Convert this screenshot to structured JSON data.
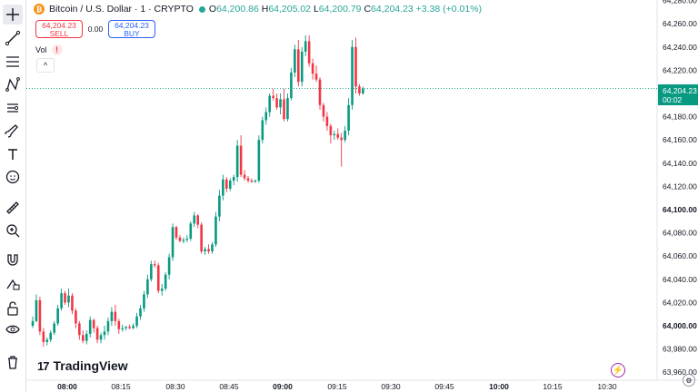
{
  "header": {
    "symbol_title": "Bitcoin / U.S. Dollar · 1 · CRYPTO",
    "coin_glyph": "₿",
    "ohlc": {
      "o_label": "O",
      "o": "64,200.86",
      "h_label": "H",
      "h": "64,205.02",
      "l_label": "L",
      "l": "64,200.79",
      "c_label": "C",
      "c": "64,204.23",
      "change": "+3.38 (+0.01%)"
    }
  },
  "trade": {
    "sell_price": "64,204.23",
    "sell_label": "SELL",
    "spread": "0.00",
    "buy_price": "64,204.23",
    "buy_label": "BUY"
  },
  "volume": {
    "label": "Vol",
    "warn": "!"
  },
  "collapse_glyph": "^",
  "logo": {
    "mark": "17",
    "name": "TradingView"
  },
  "price_label": {
    "price": "64,204.23",
    "countdown": "00:02"
  },
  "colors": {
    "up": "#089981",
    "down": "#f23645",
    "text": "#131722",
    "grid": "#f0f3fa"
  },
  "toolbar": [
    "crosshair-icon",
    "trend-line-icon",
    "fib-icon",
    "pattern-icon",
    "forecast-icon",
    "brush-icon",
    "text-icon",
    "emoji-icon",
    "ruler-icon",
    "zoom-icon",
    "magnet-icon",
    "lock-draw-icon",
    "unlock-icon",
    "eye-icon",
    "trash-icon"
  ],
  "chart_data": {
    "type": "candlestick",
    "y_ticks": [
      "64,260.00",
      "64,240.00",
      "64,220.00",
      "64,200.00",
      "64,180.00",
      "64,160.00",
      "64,140.00",
      "64,120.00",
      "64,100.00",
      "64,080.00",
      "64,060.00",
      "64,040.00",
      "64,020.00",
      "64,000.00",
      "63,980.00",
      "63,960.00"
    ],
    "y_tick_values": [
      64260,
      64240,
      64220,
      64200,
      64180,
      64160,
      64140,
      64120,
      64100,
      64080,
      64060,
      64040,
      64020,
      64000,
      63980,
      63960
    ],
    "top_tick_partial": "64,280.00",
    "x_ticks": [
      "08:00",
      "08:15",
      "08:30",
      "08:45",
      "09:00",
      "09:15",
      "09:30",
      "09:45",
      "10:00",
      "10:15",
      "10:30"
    ],
    "x_tick_bold": [
      true,
      false,
      false,
      false,
      true,
      false,
      false,
      false,
      true,
      false,
      false
    ],
    "last_price": 64204.23,
    "candles": [
      [
        64000,
        64008,
        63998,
        64004
      ],
      [
        64004,
        64027,
        64003,
        64022
      ],
      [
        64022,
        64025,
        63992,
        63995
      ],
      [
        63995,
        63998,
        63982,
        63986
      ],
      [
        63986,
        63990,
        63983,
        63988
      ],
      [
        63988,
        63996,
        63986,
        63994
      ],
      [
        63994,
        64004,
        63992,
        64002
      ],
      [
        64002,
        64018,
        64000,
        64015
      ],
      [
        64015,
        64032,
        64013,
        64028
      ],
      [
        64028,
        64030,
        64018,
        64020
      ],
      [
        64020,
        64032,
        64016,
        64026
      ],
      [
        64026,
        64028,
        64010,
        64013
      ],
      [
        64013,
        64015,
        63998,
        64002
      ],
      [
        64002,
        64004,
        63988,
        63992
      ],
      [
        63992,
        63996,
        63985,
        63987
      ],
      [
        63987,
        63996,
        63984,
        63993
      ],
      [
        63993,
        64008,
        63990,
        64005
      ],
      [
        64005,
        64006,
        63994,
        63998
      ],
      [
        63998,
        64000,
        63985,
        63988
      ],
      [
        63988,
        63994,
        63985,
        63992
      ],
      [
        63992,
        64000,
        63988,
        63995
      ],
      [
        63995,
        64007,
        63992,
        64004
      ],
      [
        64004,
        64016,
        64000,
        64012
      ],
      [
        64012,
        64018,
        64000,
        64004
      ],
      [
        64004,
        64006,
        63993,
        63997
      ],
      [
        63997,
        64001,
        63995,
        63998
      ],
      [
        63998,
        64000,
        63996,
        63999
      ],
      [
        63999,
        64001,
        63997,
        63998
      ],
      [
        63998,
        64002,
        63997,
        64000
      ],
      [
        64000,
        64011,
        63998,
        64008
      ],
      [
        64008,
        64018,
        64005,
        64015
      ],
      [
        64015,
        64030,
        64012,
        64027
      ],
      [
        64027,
        64044,
        64024,
        64040
      ],
      [
        64040,
        64056,
        64038,
        64053
      ],
      [
        64053,
        64056,
        64050,
        64052
      ],
      [
        64052,
        64054,
        64028,
        64030
      ],
      [
        64030,
        64036,
        64026,
        64032
      ],
      [
        64032,
        64046,
        64030,
        64044
      ],
      [
        64044,
        64062,
        64040,
        64059
      ],
      [
        64059,
        64088,
        64056,
        64085
      ],
      [
        64085,
        64086,
        64074,
        64076
      ],
      [
        64076,
        64078,
        64072,
        64073
      ],
      [
        64073,
        64076,
        64071,
        64074
      ],
      [
        64074,
        64078,
        64072,
        64075
      ],
      [
        64075,
        64090,
        64073,
        64088
      ],
      [
        64088,
        64098,
        64085,
        64095
      ],
      [
        64095,
        64096,
        64084,
        64087
      ],
      [
        64087,
        64089,
        64062,
        64064
      ],
      [
        64064,
        64068,
        64061,
        64066
      ],
      [
        64066,
        64070,
        64062,
        64064
      ],
      [
        64064,
        64072,
        64062,
        64070
      ],
      [
        64070,
        64098,
        64068,
        64094
      ],
      [
        64094,
        64117,
        64090,
        64112
      ],
      [
        64112,
        64130,
        64108,
        64126
      ],
      [
        64126,
        64128,
        64115,
        64118
      ],
      [
        64118,
        64127,
        64116,
        64125
      ],
      [
        64125,
        64130,
        64121,
        64128
      ],
      [
        64128,
        64160,
        64124,
        64155
      ],
      [
        64155,
        64164,
        64128,
        64130
      ],
      [
        64130,
        64134,
        64125,
        64127
      ],
      [
        64127,
        64129,
        64123,
        64125
      ],
      [
        64125,
        64127,
        64123,
        64124
      ],
      [
        64124,
        64126,
        64123,
        64125
      ],
      [
        64125,
        64164,
        64123,
        64160
      ],
      [
        64160,
        64180,
        64157,
        64177
      ],
      [
        64177,
        64188,
        64173,
        64184
      ],
      [
        64184,
        64200,
        64180,
        64198
      ],
      [
        64198,
        64204,
        64194,
        64196
      ],
      [
        64196,
        64200,
        64186,
        64188
      ],
      [
        64188,
        64200,
        64182,
        64195
      ],
      [
        64195,
        64204,
        64176,
        64178
      ],
      [
        64178,
        64200,
        64176,
        64196
      ],
      [
        64196,
        64222,
        64194,
        64218
      ],
      [
        64218,
        64242,
        64214,
        64238
      ],
      [
        64238,
        64246,
        64206,
        64210
      ],
      [
        64210,
        64240,
        64206,
        64236
      ],
      [
        64236,
        64250,
        64232,
        64245
      ],
      [
        64245,
        64250,
        64223,
        64226
      ],
      [
        64226,
        64230,
        64212,
        64217
      ],
      [
        64217,
        64224,
        64210,
        64212
      ],
      [
        64212,
        64214,
        64186,
        64190
      ],
      [
        64190,
        64192,
        64176,
        64180
      ],
      [
        64180,
        64184,
        64168,
        64172
      ],
      [
        64172,
        64174,
        64157,
        64164
      ],
      [
        64164,
        64168,
        64160,
        64165
      ],
      [
        64165,
        64170,
        64160,
        64162
      ],
      [
        64162,
        64166,
        64137,
        64160
      ],
      [
        64160,
        64172,
        64158,
        64168
      ],
      [
        64168,
        64196,
        64164,
        64190
      ],
      [
        64190,
        64246,
        64186,
        64240
      ],
      [
        64240,
        64248,
        64200,
        64206
      ],
      [
        64206,
        64208,
        64198,
        64200
      ],
      [
        64200,
        64206,
        64199,
        64204
      ]
    ]
  }
}
